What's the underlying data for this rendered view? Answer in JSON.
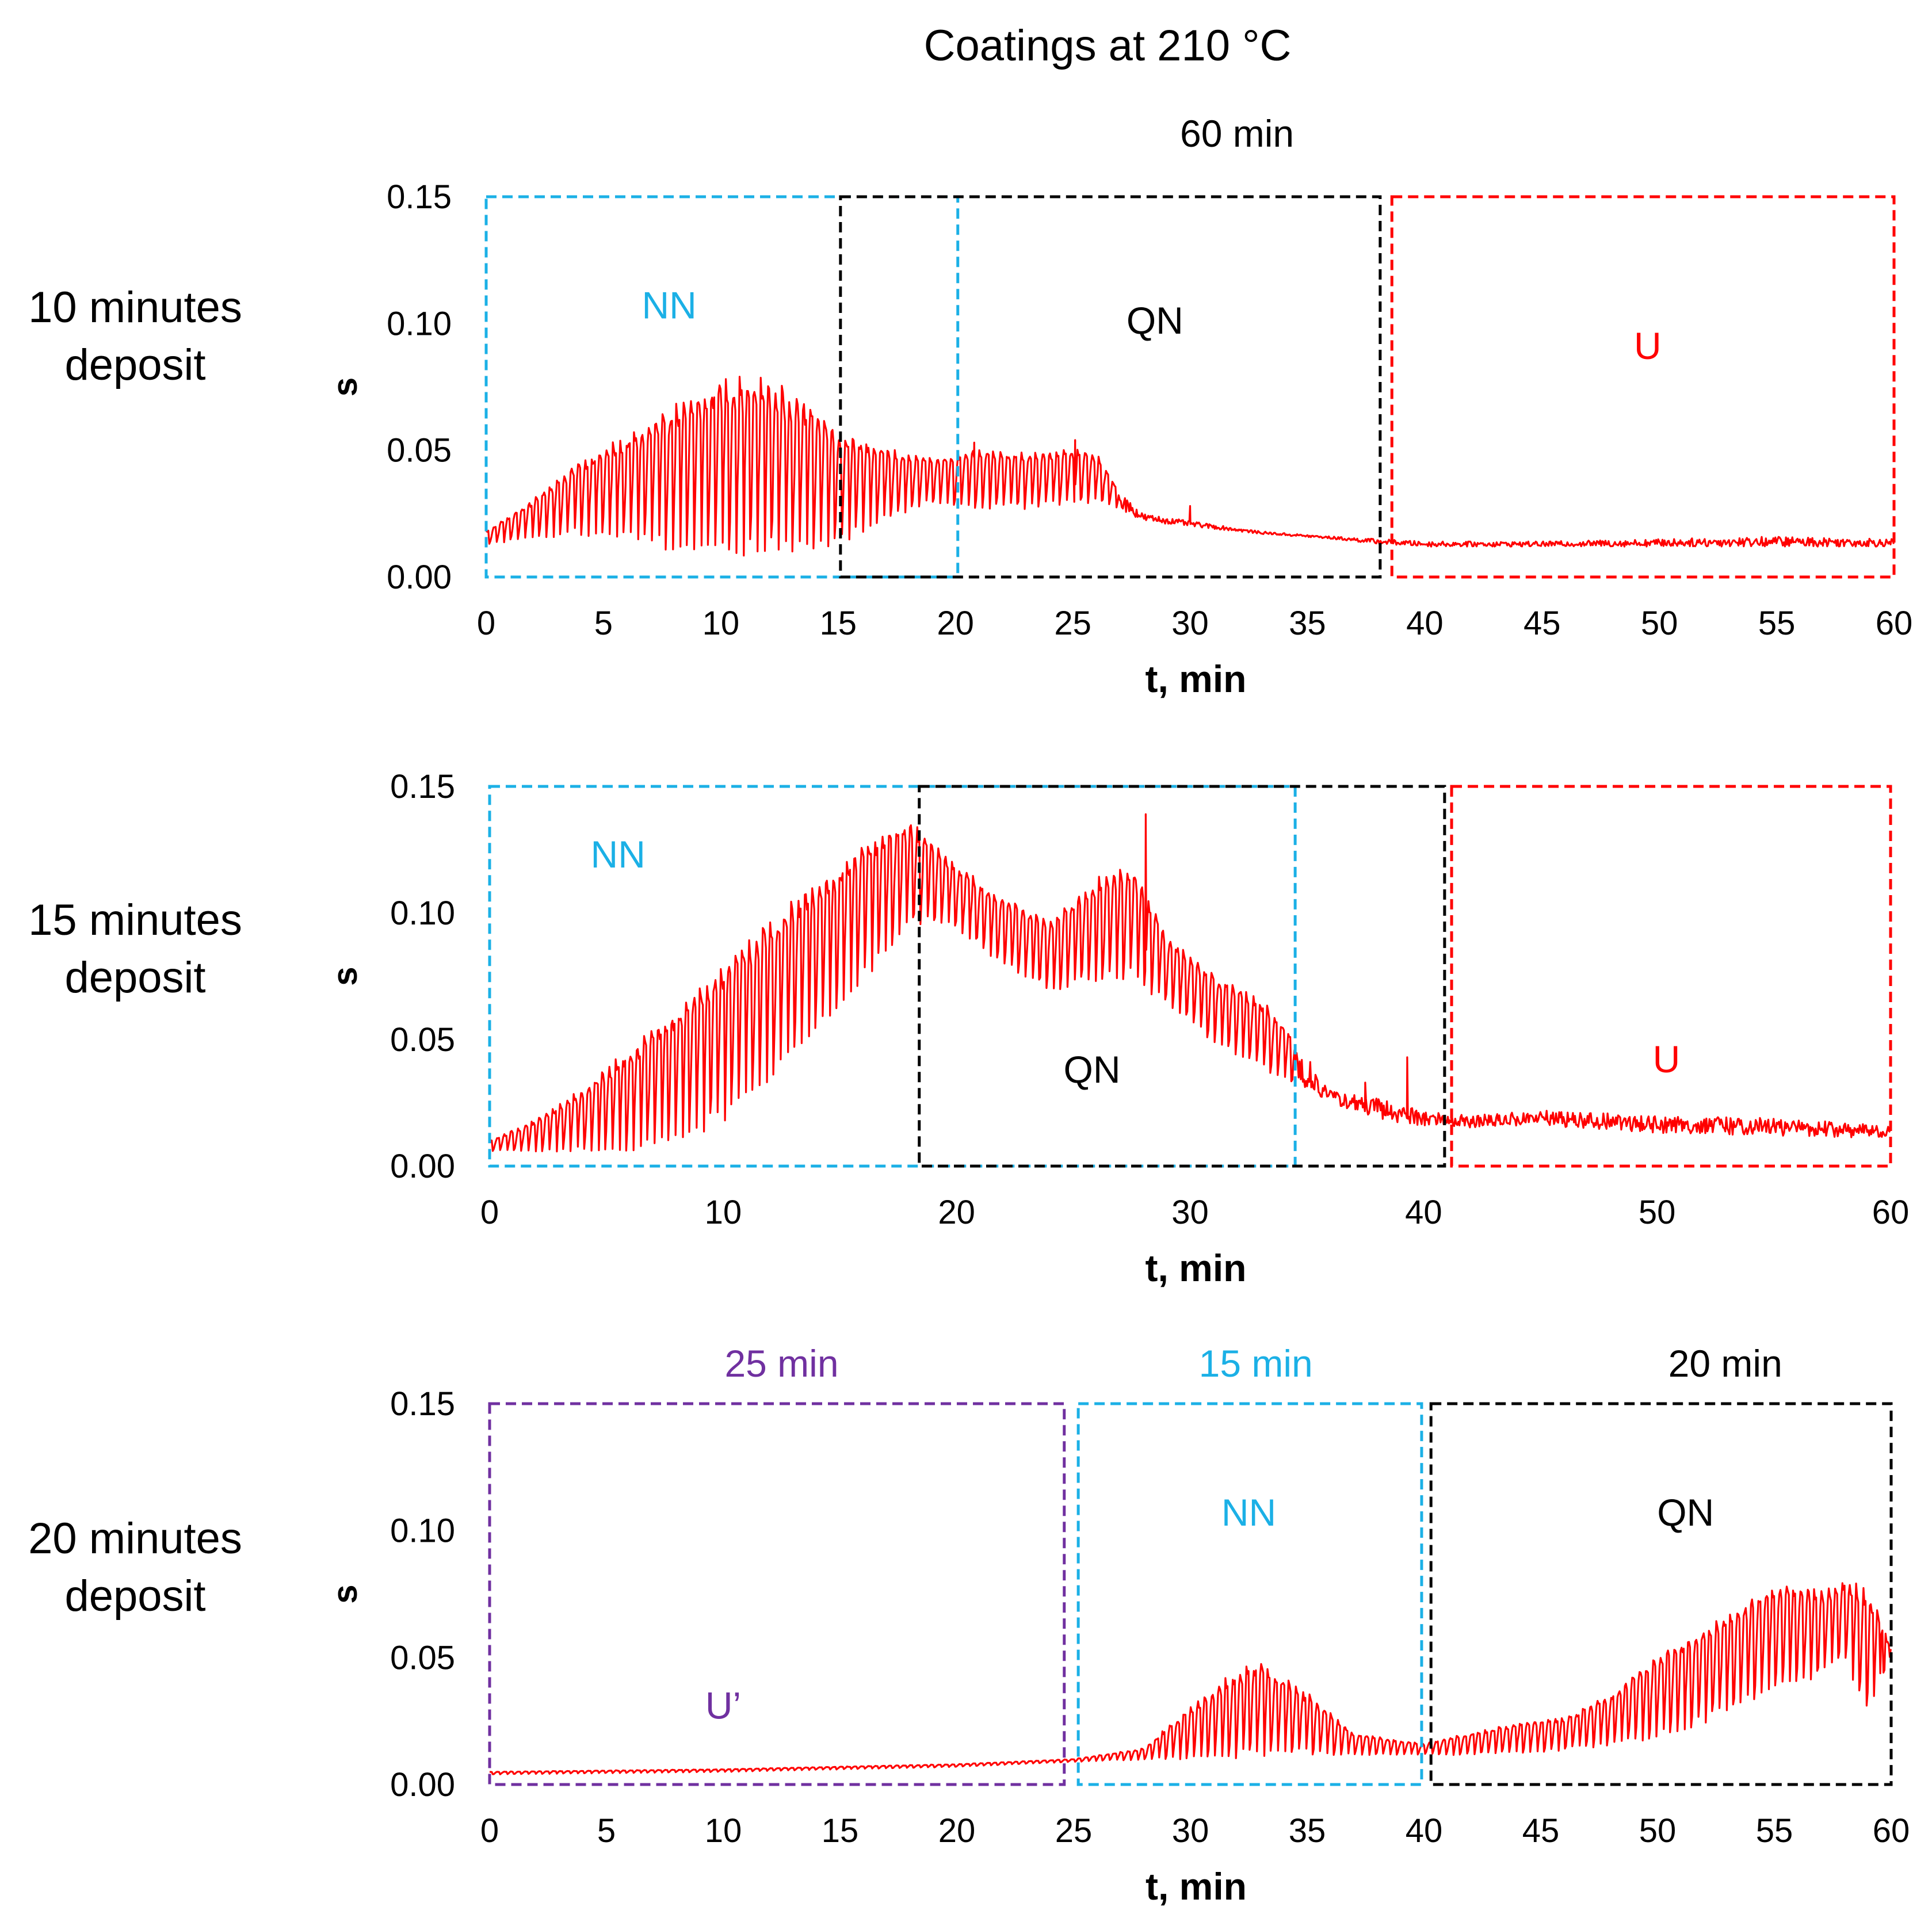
{
  "figure_title": "Coatings at 210 °C",
  "colors": {
    "series": "#ff0000",
    "NN": "#1bb0e6",
    "QN": "#000000",
    "U": "#ff0000",
    "U_prime": "#7030a0"
  },
  "chart_data": [
    {
      "type": "line",
      "row_label": [
        "10 minutes",
        "deposit"
      ],
      "xlabel": "t, min",
      "ylabel": "s",
      "xlim": [
        0,
        60
      ],
      "ylim": [
        0,
        0.15
      ],
      "xticks": [
        0,
        5,
        10,
        15,
        20,
        25,
        30,
        35,
        40,
        45,
        50,
        55,
        60
      ],
      "xtick_labels": [
        "0",
        "5",
        "10",
        "15",
        "20",
        "25",
        "30",
        "35",
        "40",
        "45",
        "50",
        "55",
        "60"
      ],
      "yticks": [
        0,
        0.05,
        0.1,
        0.15
      ],
      "ytick_labels": [
        "0.00",
        "0.05",
        "0.10",
        "0.15"
      ],
      "duration_labels": [
        {
          "text": "60 min",
          "x": 32,
          "color": "#000000"
        }
      ],
      "regions": [
        {
          "label": "NN",
          "x0": 0,
          "x1": 20.1,
          "color": "#1bb0e6",
          "label_x": 7.8,
          "label_y": 0.102
        },
        {
          "label": "QN",
          "x0": 15.1,
          "x1": 38.1,
          "color": "#000000",
          "label_x": 28.5,
          "label_y": 0.096
        },
        {
          "label": "U",
          "x0": 38.6,
          "x1": 60,
          "color": "#ff0000",
          "label_x": 49.5,
          "label_y": 0.086
        }
      ],
      "series": {
        "name": "s",
        "envelope_t": [
          0,
          2,
          4,
          6,
          8,
          10,
          12,
          14,
          15,
          17,
          19,
          21,
          23,
          25,
          26,
          27,
          28,
          30,
          33,
          36,
          38,
          40,
          45,
          50,
          55,
          60
        ],
        "envelope_high": [
          0.018,
          0.03,
          0.045,
          0.054,
          0.065,
          0.076,
          0.075,
          0.065,
          0.056,
          0.05,
          0.046,
          0.05,
          0.048,
          0.05,
          0.048,
          0.034,
          0.025,
          0.022,
          0.018,
          0.016,
          0.015,
          0.014,
          0.014,
          0.015,
          0.016,
          0.015
        ],
        "envelope_low": [
          0.013,
          0.016,
          0.018,
          0.017,
          0.013,
          0.011,
          0.012,
          0.014,
          0.015,
          0.023,
          0.03,
          0.028,
          0.028,
          0.03,
          0.03,
          0.027,
          0.022,
          0.02,
          0.017,
          0.015,
          0.013,
          0.012,
          0.012,
          0.012,
          0.012,
          0.012
        ],
        "oscillation_until_min": 27,
        "spikes": [
          {
            "t": 20.8,
            "v": 0.053
          },
          {
            "t": 25.1,
            "v": 0.054
          },
          {
            "t": 30.0,
            "v": 0.028
          }
        ]
      }
    },
    {
      "type": "line",
      "row_label": [
        "15 minutes",
        "deposit"
      ],
      "xlabel": "t, min",
      "ylabel": "s",
      "xlim": [
        0,
        60
      ],
      "ylim": [
        0,
        0.15
      ],
      "xticks": [
        0,
        10,
        20,
        30,
        40,
        50,
        60
      ],
      "xtick_labels": [
        "0",
        "10",
        "20",
        "30",
        "40",
        "50",
        "60"
      ],
      "yticks": [
        0,
        0.05,
        0.1,
        0.15
      ],
      "ytick_labels": [
        "0.00",
        "0.05",
        "0.10",
        "0.15"
      ],
      "duration_labels": [],
      "regions": [
        {
          "label": "NN",
          "x0": 0,
          "x1": 34.5,
          "color": "#1bb0e6",
          "label_x": 5.5,
          "label_y": 0.118
        },
        {
          "label": "QN",
          "x0": 18.4,
          "x1": 40.9,
          "color": "#000000",
          "label_x": 25.8,
          "label_y": 0.033
        },
        {
          "label": "U",
          "x0": 41.2,
          "x1": 60,
          "color": "#ff0000",
          "label_x": 50.4,
          "label_y": 0.037
        }
      ],
      "series": {
        "name": "s",
        "envelope_t": [
          0,
          2,
          4,
          6,
          8,
          10,
          12,
          14,
          16,
          18,
          20,
          22,
          24,
          26,
          27.5,
          29,
          31,
          33,
          34.5,
          36,
          38,
          40,
          42,
          45,
          50,
          55,
          60
        ],
        "envelope_high": [
          0.01,
          0.018,
          0.03,
          0.045,
          0.06,
          0.078,
          0.095,
          0.11,
          0.125,
          0.135,
          0.118,
          0.105,
          0.096,
          0.112,
          0.118,
          0.09,
          0.075,
          0.065,
          0.05,
          0.03,
          0.027,
          0.022,
          0.02,
          0.022,
          0.02,
          0.019,
          0.016
        ],
        "envelope_low": [
          0.006,
          0.006,
          0.007,
          0.008,
          0.012,
          0.02,
          0.035,
          0.055,
          0.075,
          0.098,
          0.095,
          0.08,
          0.07,
          0.075,
          0.076,
          0.065,
          0.05,
          0.04,
          0.032,
          0.025,
          0.018,
          0.016,
          0.015,
          0.016,
          0.013,
          0.012,
          0.011
        ],
        "oscillation_until_min": 34.5,
        "spikes": [
          {
            "t": 28.1,
            "v": 0.139
          },
          {
            "t": 39.3,
            "v": 0.043
          },
          {
            "t": 37.5,
            "v": 0.033
          }
        ]
      }
    },
    {
      "type": "line",
      "row_label": [
        "20 minutes",
        "deposit"
      ],
      "xlabel": "t, min",
      "ylabel": "s",
      "xlim": [
        0,
        60
      ],
      "ylim": [
        0,
        0.15
      ],
      "xticks": [
        0,
        5,
        10,
        15,
        20,
        25,
        30,
        35,
        40,
        45,
        50,
        55,
        60
      ],
      "xtick_labels": [
        "0",
        "5",
        "10",
        "15",
        "20",
        "25",
        "30",
        "35",
        "40",
        "45",
        "50",
        "55",
        "60"
      ],
      "yticks": [
        0,
        0.05,
        0.1,
        0.15
      ],
      "ytick_labels": [
        "0.00",
        "0.05",
        "0.10",
        "0.15"
      ],
      "duration_labels": [
        {
          "text": "25 min",
          "x": 12.5,
          "color": "#7030a0"
        },
        {
          "text": "15 min",
          "x": 32.8,
          "color": "#1bb0e6"
        },
        {
          "text": "20 min",
          "x": 52.9,
          "color": "#000000"
        }
      ],
      "regions": [
        {
          "label": "U’",
          "x0": 0,
          "x1": 24.6,
          "color": "#7030a0",
          "label_x": 10,
          "label_y": 0.026
        },
        {
          "label": "NN",
          "x0": 25.2,
          "x1": 39.9,
          "color": "#1bb0e6",
          "label_x": 32.5,
          "label_y": 0.102
        },
        {
          "label": "QN",
          "x0": 40.3,
          "x1": 60,
          "color": "#000000",
          "label_x": 51.2,
          "label_y": 0.102
        }
      ],
      "series": {
        "name": "s",
        "envelope_t": [
          0,
          10,
          20,
          25,
          28,
          30,
          32,
          33,
          35,
          37,
          39,
          40,
          42,
          44,
          46,
          48,
          50,
          52,
          54,
          55,
          56,
          57,
          58,
          59,
          60
        ],
        "envelope_high": [
          0.005,
          0.006,
          0.008,
          0.01,
          0.014,
          0.03,
          0.044,
          0.047,
          0.035,
          0.02,
          0.017,
          0.016,
          0.02,
          0.024,
          0.026,
          0.035,
          0.05,
          0.06,
          0.072,
          0.077,
          0.078,
          0.075,
          0.08,
          0.075,
          0.055
        ],
        "envelope_low": [
          0.004,
          0.005,
          0.007,
          0.009,
          0.01,
          0.011,
          0.012,
          0.013,
          0.013,
          0.012,
          0.012,
          0.012,
          0.012,
          0.013,
          0.014,
          0.016,
          0.02,
          0.026,
          0.035,
          0.04,
          0.04,
          0.045,
          0.052,
          0.028,
          0.05
        ],
        "oscillation_until_min": 59.5,
        "spikes": []
      }
    }
  ]
}
